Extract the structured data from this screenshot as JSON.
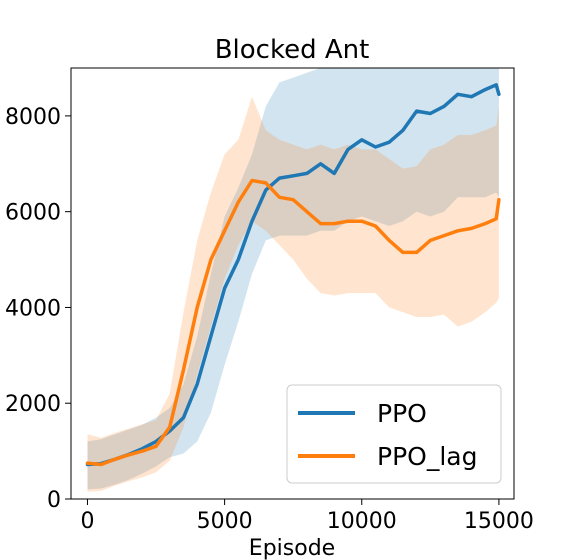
{
  "chart_data": {
    "type": "line",
    "title": "Blocked Ant",
    "xlabel": "Episode",
    "ylabel": "",
    "xlim": [
      -600,
      15550
    ],
    "ylim": [
      0,
      9000
    ],
    "xticks": [
      0,
      5000,
      10000,
      15000
    ],
    "yticks": [
      0,
      2000,
      4000,
      6000,
      8000
    ],
    "grid": false,
    "legend_position": "lower right",
    "colors": {
      "PPO": "#1f77b4",
      "PPO_lag": "#ff7f0e"
    },
    "series": [
      {
        "name": "PPO",
        "x": [
          0,
          500,
          1000,
          1500,
          2000,
          2500,
          3000,
          3500,
          4000,
          4500,
          5000,
          5500,
          6000,
          6500,
          7000,
          7500,
          8000,
          8500,
          9000,
          9500,
          10000,
          10500,
          11000,
          11500,
          12000,
          12500,
          13000,
          13500,
          14000,
          14500,
          14900,
          15000
        ],
        "y": [
          720,
          740,
          830,
          930,
          1050,
          1200,
          1420,
          1700,
          2400,
          3400,
          4400,
          5000,
          5800,
          6450,
          6700,
          6750,
          6800,
          7000,
          6800,
          7300,
          7500,
          7350,
          7450,
          7700,
          8100,
          8050,
          8200,
          8450,
          8400,
          8550,
          8650,
          8450
        ],
        "lower": [
          200,
          220,
          300,
          400,
          530,
          680,
          870,
          950,
          1200,
          1800,
          2800,
          3700,
          4700,
          5400,
          5500,
          5500,
          5500,
          5600,
          5600,
          5800,
          5900,
          5800,
          5700,
          5800,
          6000,
          5900,
          6000,
          6300,
          6300,
          6300,
          6400,
          6300
        ],
        "upper": [
          1200,
          1250,
          1350,
          1450,
          1550,
          1700,
          1900,
          2400,
          3400,
          4700,
          5900,
          6500,
          7200,
          8200,
          8700,
          8800,
          8900,
          9000,
          9000,
          9000,
          9000,
          9000,
          9000,
          9000,
          9000,
          9000,
          9000,
          9000,
          9000,
          9000,
          9000,
          9000
        ]
      },
      {
        "name": "PPO_lag",
        "x": [
          0,
          500,
          1000,
          1500,
          2000,
          2500,
          3000,
          3500,
          4000,
          4500,
          5000,
          5500,
          6000,
          6500,
          7000,
          7500,
          8000,
          8500,
          9000,
          9500,
          10000,
          10500,
          11000,
          11500,
          12000,
          12500,
          13000,
          13500,
          14000,
          14500,
          14900,
          15000
        ],
        "y": [
          750,
          720,
          830,
          920,
          1000,
          1100,
          1500,
          2700,
          4000,
          5000,
          5600,
          6200,
          6650,
          6600,
          6300,
          6250,
          6000,
          5750,
          5750,
          5800,
          5800,
          5700,
          5400,
          5150,
          5150,
          5400,
          5500,
          5600,
          5650,
          5750,
          5850,
          6250
        ],
        "lower": [
          150,
          170,
          280,
          370,
          450,
          560,
          800,
          1500,
          2600,
          3600,
          4600,
          5300,
          5800,
          5600,
          5300,
          5000,
          4600,
          4300,
          4250,
          4300,
          4300,
          4300,
          4000,
          3900,
          3800,
          3800,
          3850,
          3600,
          3700,
          3900,
          4100,
          4200
        ],
        "upper": [
          1350,
          1280,
          1380,
          1470,
          1560,
          1650,
          2200,
          3900,
          5400,
          6400,
          7200,
          7500,
          8400,
          7700,
          7500,
          7400,
          7300,
          7400,
          7300,
          7400,
          7300,
          7300,
          7100,
          6900,
          6950,
          7300,
          7400,
          7600,
          7600,
          7700,
          7800,
          8200
        ]
      }
    ]
  }
}
